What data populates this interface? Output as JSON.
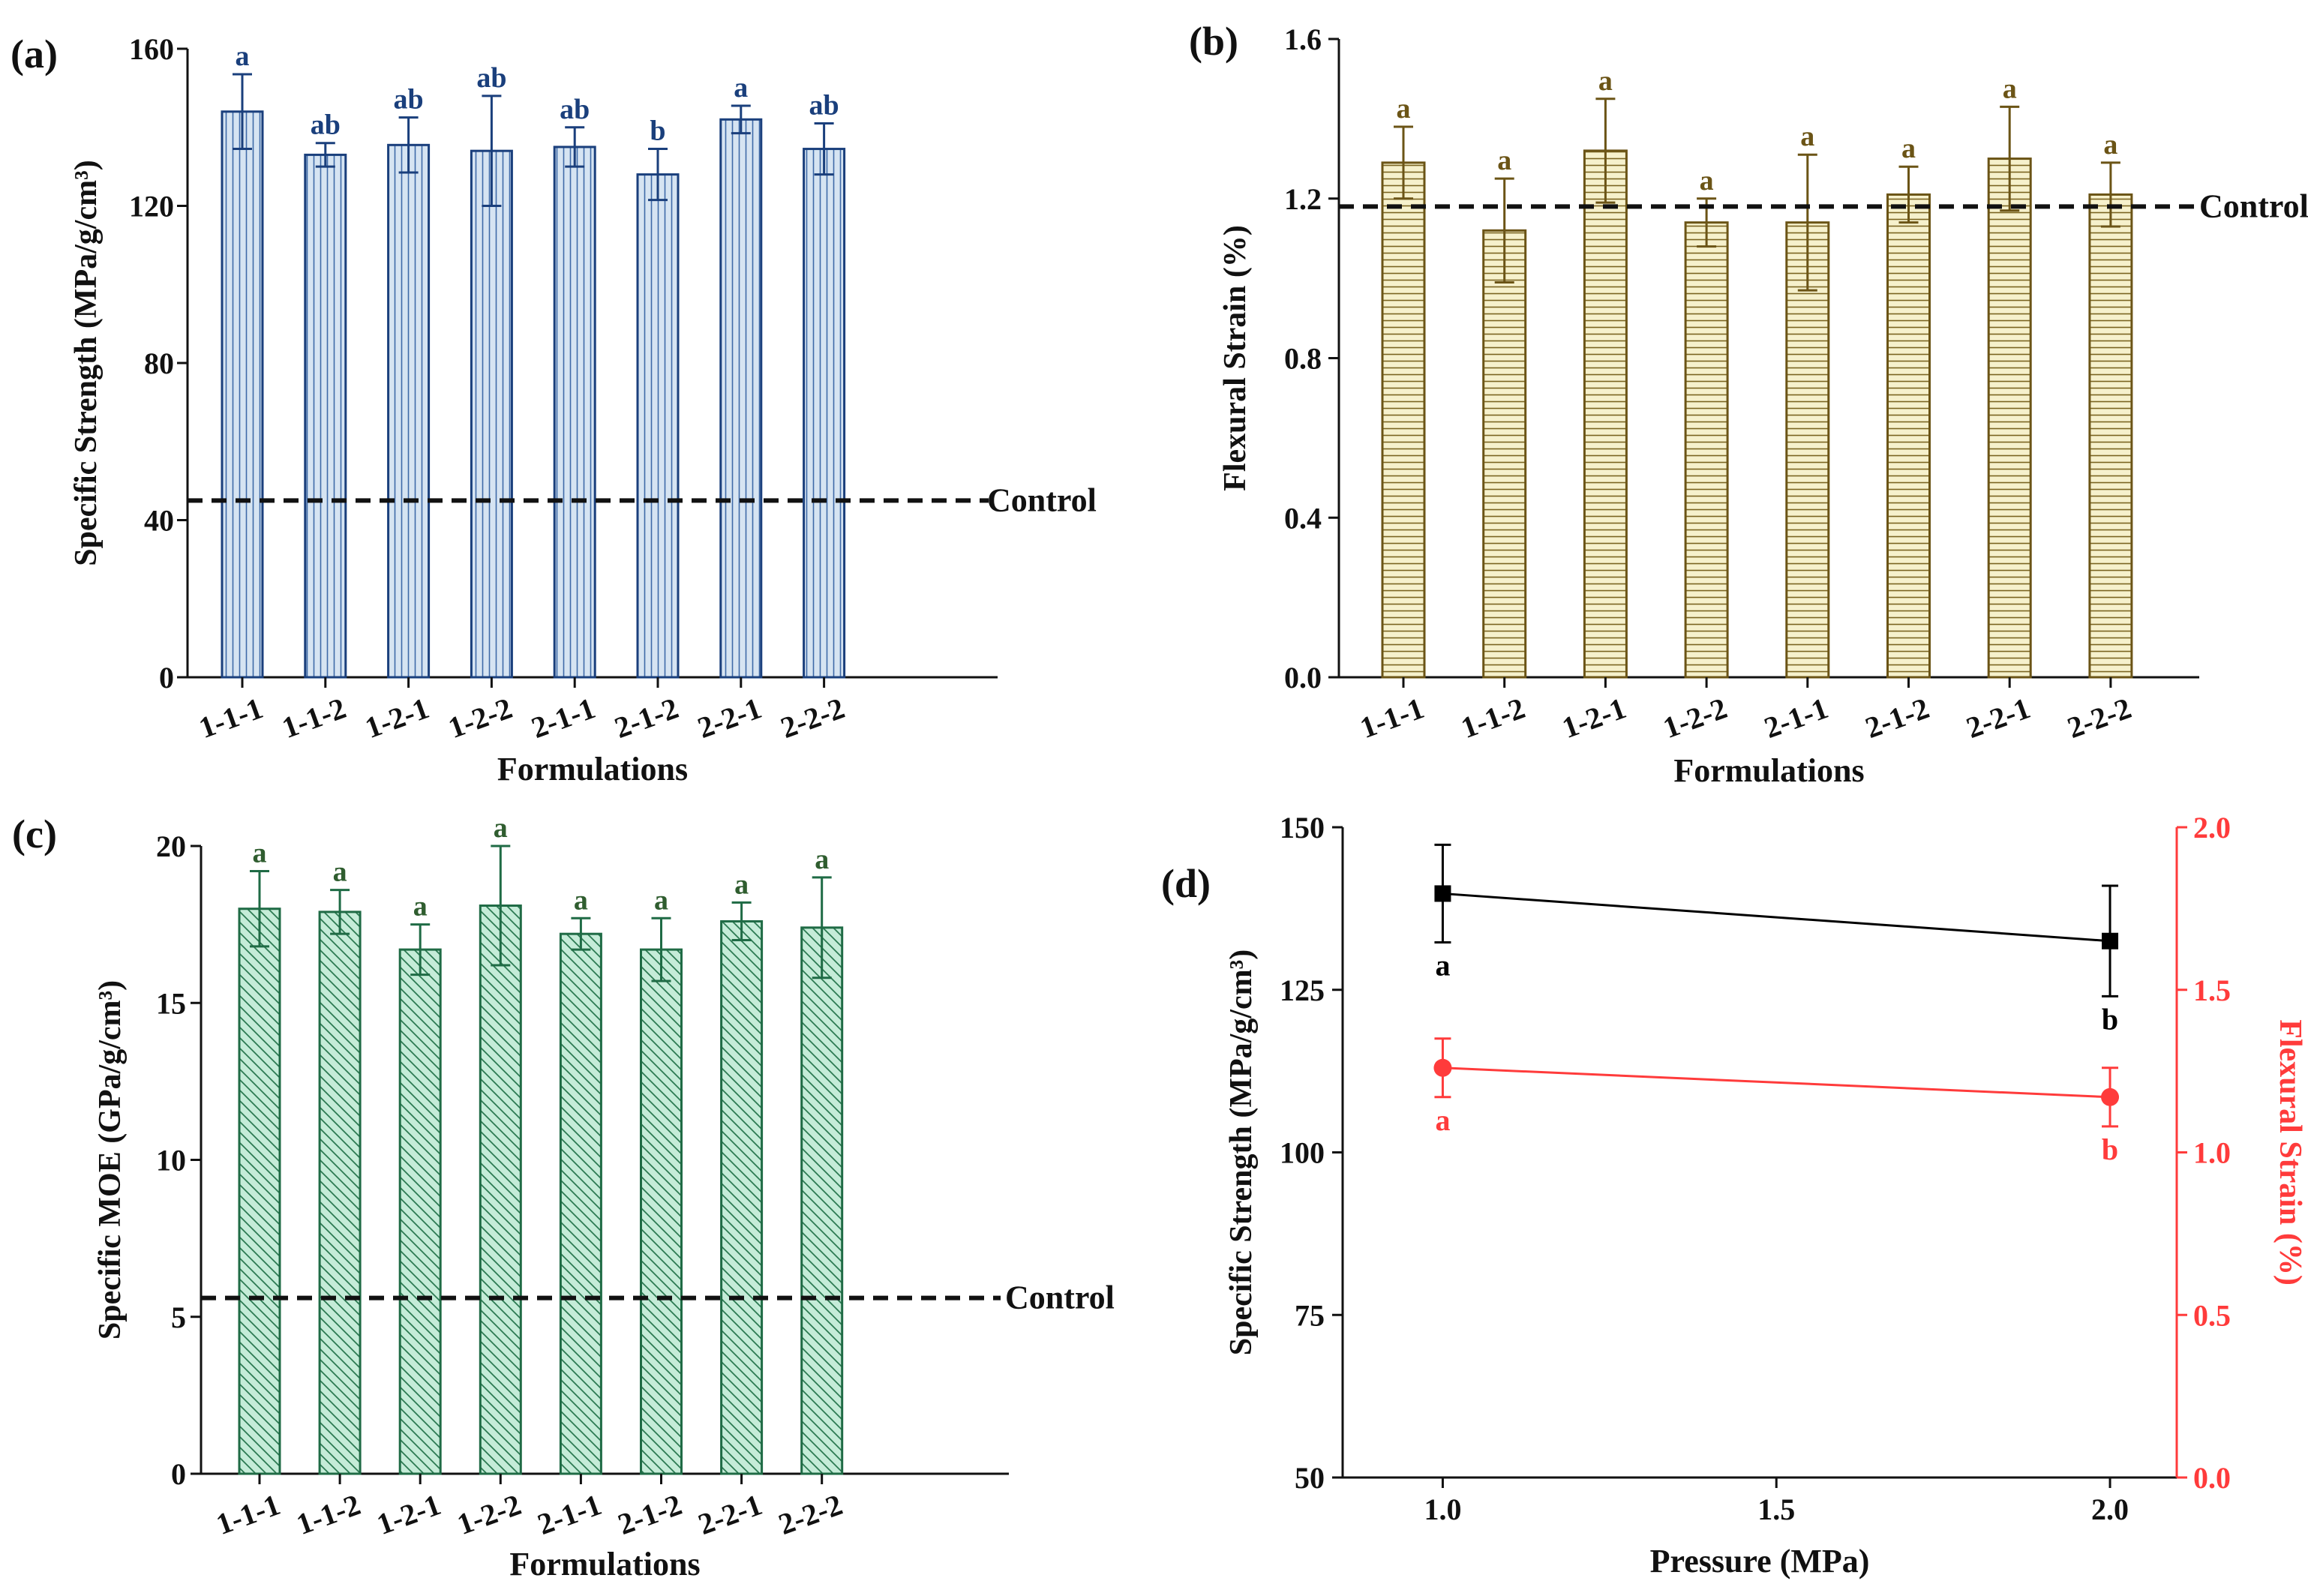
{
  "figure": {
    "colors": {
      "a_fill": "#d6e4f2",
      "a_stroke": "#1a3f7c",
      "a_letters": "#1a3f7c",
      "b_fill": "#f6f1cc",
      "b_stroke": "#6b5416",
      "b_letters": "#6b5416",
      "c_fill": "#c5ecd8",
      "c_stroke": "#1f6b45",
      "c_letters": "#2f5d2f",
      "d_series1": "#000000",
      "d_series2": "#ff3b3b"
    }
  },
  "chart_data": [
    {
      "id": "a",
      "type": "bar",
      "panel_label": "(a)",
      "title": "",
      "xlabel": "Formulations",
      "ylabel": "Specific Strength (MPa/g/cm³)",
      "categories": [
        "1-1-1",
        "1-1-2",
        "1-2-1",
        "1-2-2",
        "2-1-1",
        "2-1-2",
        "2-2-1",
        "2-2-2"
      ],
      "values": [
        144,
        133,
        135.5,
        134,
        135,
        128,
        142,
        134.5
      ],
      "errors": [
        9.5,
        3,
        7,
        14,
        5,
        6.5,
        3.5,
        6.5
      ],
      "letters": [
        "a",
        "ab",
        "ab",
        "ab",
        "ab",
        "b",
        "a",
        "ab"
      ],
      "ylim": [
        0,
        160
      ],
      "yticks": [
        0,
        40,
        80,
        120,
        160
      ],
      "pattern": "vertical",
      "control": {
        "value": 45,
        "label": "Control"
      }
    },
    {
      "id": "b",
      "type": "bar",
      "panel_label": "(b)",
      "title": "",
      "xlabel": "Formulations",
      "ylabel": "Flexural Strain (%)",
      "categories": [
        "1-1-1",
        "1-1-2",
        "1-2-1",
        "1-2-2",
        "2-1-1",
        "2-1-2",
        "2-2-1",
        "2-2-2"
      ],
      "values": [
        1.29,
        1.12,
        1.32,
        1.14,
        1.14,
        1.21,
        1.3,
        1.21
      ],
      "errors": [
        0.09,
        0.13,
        0.13,
        0.06,
        0.17,
        0.07,
        0.13,
        0.08
      ],
      "letters": [
        "a",
        "a",
        "a",
        "a",
        "a",
        "a",
        "a",
        "a"
      ],
      "ylim": [
        0,
        1.6
      ],
      "yticks": [
        "0.0",
        "0.4",
        "0.8",
        "1.2",
        "1.6"
      ],
      "pattern": "horizontal",
      "control": {
        "value": 1.18,
        "label": "Control"
      }
    },
    {
      "id": "c",
      "type": "bar",
      "panel_label": "(c)",
      "title": "",
      "xlabel": "Formulations",
      "ylabel": "Specific MOE (GPa/g/cm³)",
      "categories": [
        "1-1-1",
        "1-1-2",
        "1-2-1",
        "1-2-2",
        "2-1-1",
        "2-1-2",
        "2-2-1",
        "2-2-2"
      ],
      "values": [
        18,
        17.9,
        16.7,
        18.1,
        17.2,
        16.7,
        17.6,
        17.4
      ],
      "errors": [
        1.2,
        0.7,
        0.8,
        1.9,
        0.5,
        1,
        0.6,
        1.6
      ],
      "letters": [
        "a",
        "a",
        "a",
        "a",
        "a",
        "a",
        "a",
        "a"
      ],
      "ylim": [
        0,
        20
      ],
      "yticks": [
        0,
        5,
        10,
        15,
        20
      ],
      "pattern": "diagonal",
      "control": {
        "value": 5.6,
        "label": "Control"
      }
    },
    {
      "id": "d",
      "type": "line",
      "panel_label": "(d)",
      "title": "",
      "xlabel": "Pressure (MPa)",
      "ylabel": "Specific Strength (MPa/g/cm³)",
      "y2label": "Flexural Strain (%)",
      "xlim": [
        0.85,
        2.1
      ],
      "xticks": [
        "1.0",
        "1.5",
        "2.0"
      ],
      "ylim": [
        50,
        150
      ],
      "yticks": [
        50,
        75,
        100,
        125,
        150
      ],
      "y2lim": [
        0,
        2
      ],
      "y2ticks": [
        "0.0",
        "0.5",
        "1.0",
        "1.5",
        "2.0"
      ],
      "series": [
        {
          "name": "Specific Strength",
          "axis": "left",
          "marker": "square",
          "x": [
            1.0,
            2.0
          ],
          "y": [
            139.8,
            132.5
          ],
          "errors": [
            7.5,
            8.5
          ],
          "letters": [
            "a",
            "b"
          ]
        },
        {
          "name": "Flexural Strain",
          "axis": "right",
          "marker": "circle",
          "x": [
            1.0,
            2.0
          ],
          "y": [
            1.26,
            1.17
          ],
          "errors": [
            0.09,
            0.09
          ],
          "letters": [
            "a",
            "b"
          ]
        }
      ]
    }
  ]
}
